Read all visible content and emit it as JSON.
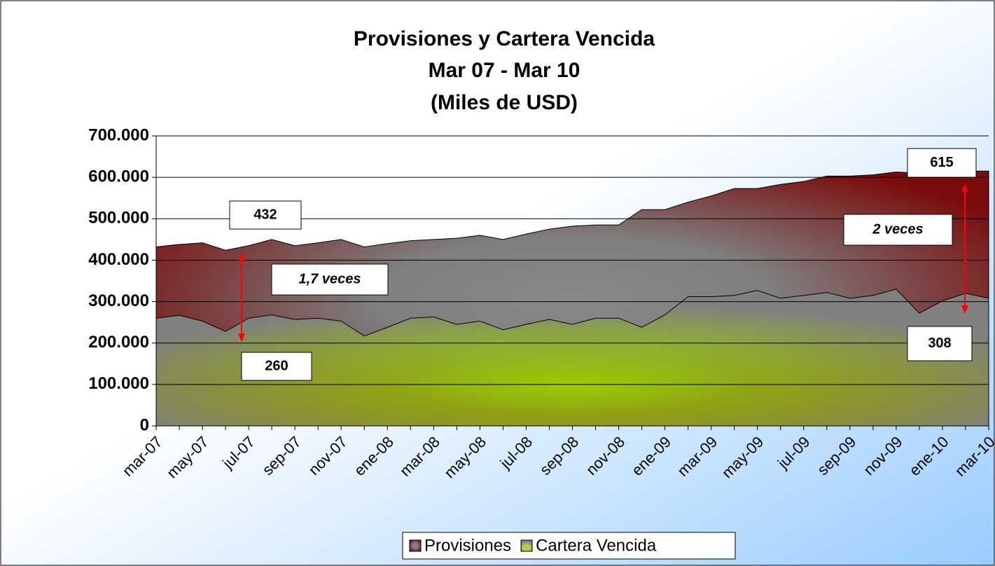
{
  "chart_data": {
    "type": "area",
    "title": "Provisiones y Cartera Vencida",
    "subtitle": [
      "Mar 07 - Mar 10",
      "(Miles de USD)"
    ],
    "categories": [
      "mar-07",
      null,
      "may-07",
      null,
      "jul-07",
      null,
      "sep-07",
      null,
      "nov-07",
      null,
      "ene-08",
      null,
      "mar-08",
      null,
      "may-08",
      null,
      "jul-08",
      null,
      "sep-08",
      null,
      "nov-08",
      null,
      "ene-09",
      null,
      "mar-09",
      null,
      "may-09",
      null,
      "jul-09",
      null,
      "sep-09",
      null,
      "nov-09",
      null,
      "ene-10",
      null,
      "mar-10"
    ],
    "series": [
      {
        "name": "Provisiones",
        "color": "#7a0c0c",
        "values": [
          432000,
          438000,
          442000,
          424000,
          435000,
          450000,
          435000,
          442000,
          450000,
          432000,
          440000,
          447000,
          450000,
          453000,
          460000,
          450000,
          463000,
          475000,
          482000,
          485000,
          485000,
          522000,
          522000,
          540000,
          555000,
          573000,
          573000,
          583000,
          590000,
          603000,
          603000,
          606000,
          613000,
          610000,
          612000,
          615000,
          615000
        ]
      },
      {
        "name": "Cartera Vencida",
        "color": "#99cc00",
        "values": [
          260000,
          267000,
          253000,
          228000,
          260000,
          268000,
          257000,
          260000,
          253000,
          217000,
          238000,
          260000,
          263000,
          245000,
          253000,
          232000,
          245000,
          257000,
          245000,
          260000,
          260000,
          238000,
          268000,
          312000,
          312000,
          315000,
          327000,
          308000,
          315000,
          322000,
          308000,
          315000,
          330000,
          272000,
          302000,
          320000,
          308000
        ]
      }
    ],
    "ylim": [
      0,
      700000
    ],
    "yticks": [
      0,
      {
        "value": 100000,
        "label": "100.000"
      },
      {
        "value": 200000,
        "label": "200.000"
      },
      {
        "value": 300000,
        "label": "300.000"
      },
      {
        "value": 400000,
        "label": "400.000"
      },
      {
        "value": 500000,
        "label": "500.000"
      },
      {
        "value": 600000,
        "label": "600.000"
      },
      {
        "value": 700000,
        "label": "700.000"
      }
    ],
    "grid": true,
    "legend": "bottom",
    "annotations": [
      "432",
      "260",
      "1,7 veces",
      "615",
      "2 veces",
      "308"
    ]
  }
}
